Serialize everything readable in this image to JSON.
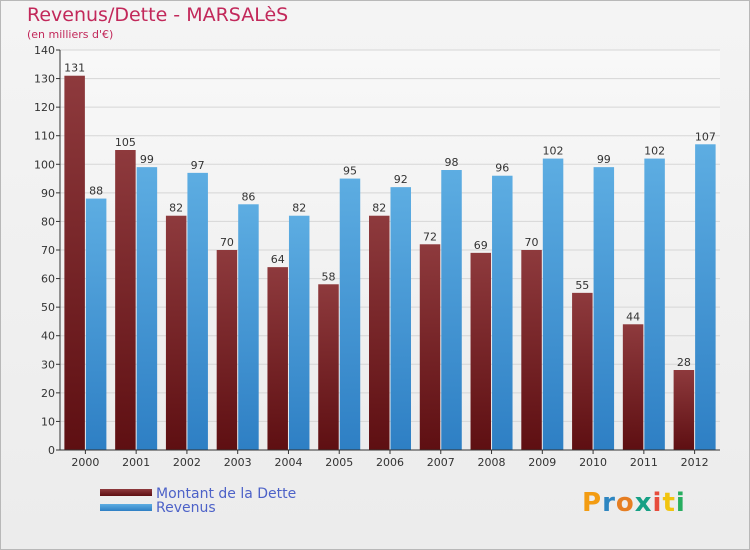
{
  "title": "Revenus/Dette - MARSALèS",
  "subtitle": "(en milliers d'€)",
  "legend": {
    "dette_label": "Montant de la Dette",
    "revenus_label": "Revenus"
  },
  "logo": {
    "text": "Proxiti",
    "letter_colors": [
      "#f39c12",
      "#2e86c1",
      "#e67e22",
      "#16a085",
      "#e74c3c",
      "#f1c40f",
      "#27ae60"
    ]
  },
  "colors": {
    "dette": "#7a2226",
    "revenus": "#3d95dc",
    "title": "#c2285a"
  },
  "chart_data": {
    "type": "bar",
    "categories": [
      "2000",
      "2001",
      "2002",
      "2003",
      "2004",
      "2005",
      "2006",
      "2007",
      "2008",
      "2009",
      "2010",
      "2011",
      "2012"
    ],
    "series": [
      {
        "name": "Montant de la Dette",
        "values": [
          131,
          105,
          82,
          70,
          64,
          58,
          82,
          72,
          69,
          70,
          55,
          44,
          28
        ]
      },
      {
        "name": "Revenus",
        "values": [
          88,
          99,
          97,
          86,
          82,
          95,
          92,
          98,
          96,
          102,
          99,
          102,
          107
        ]
      }
    ],
    "yticks": [
      0,
      10,
      20,
      30,
      40,
      50,
      60,
      70,
      80,
      90,
      100,
      110,
      120,
      130,
      140
    ],
    "ylim": [
      0,
      140
    ],
    "grid": true,
    "legend_position": "bottom-left"
  }
}
